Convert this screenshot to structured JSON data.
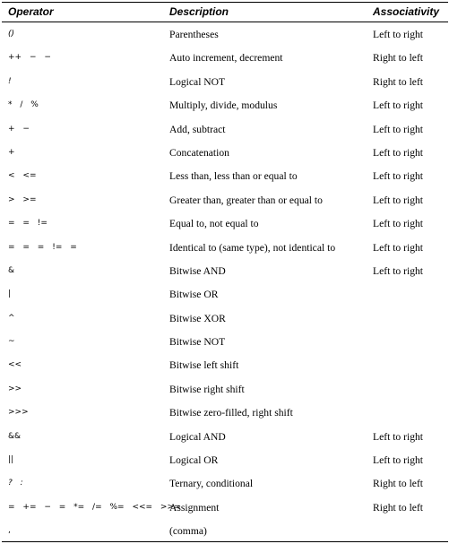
{
  "headers": {
    "operator": "Operator",
    "description": "Description",
    "associativity": "Associativity"
  },
  "rows": [
    {
      "op": "()",
      "desc": "Parentheses",
      "assoc": "Left to right"
    },
    {
      "op": "++    − −",
      "desc": "Auto increment, decrement",
      "assoc": "Right to left"
    },
    {
      "op": "!",
      "desc": "Logical NOT",
      "assoc": "Right to left"
    },
    {
      "op": "*    /    %",
      "desc": "Multiply, divide, modulus",
      "assoc": "Left to right"
    },
    {
      "op": "+    −",
      "desc": "Add, subtract",
      "assoc": "Left to right"
    },
    {
      "op": "+",
      "desc": "Concatenation",
      "assoc": "Left to right"
    },
    {
      "op": "<    <=",
      "desc": "Less than, less than or equal to",
      "assoc": "Left to right"
    },
    {
      "op": ">    >=",
      "desc": "Greater than, greater than or equal to",
      "assoc": "Left to right"
    },
    {
      "op": "= =        !=",
      "desc": "Equal to, not equal to",
      "assoc": "Left to right"
    },
    {
      "op": "= = =    != =",
      "desc": "Identical to (same type), not identical to",
      "assoc": "Left to right"
    },
    {
      "op": "&",
      "desc": "Bitwise AND",
      "assoc": "Left to right"
    },
    {
      "op": "|",
      "desc": "Bitwise OR",
      "assoc": ""
    },
    {
      "op": "^",
      "desc": "Bitwise XOR",
      "assoc": ""
    },
    {
      "op": "~",
      "desc": "Bitwise NOT",
      "assoc": ""
    },
    {
      "op": "<<",
      "desc": "Bitwise left shift",
      "assoc": ""
    },
    {
      "op": ">>",
      "desc": "Bitwise right shift",
      "assoc": ""
    },
    {
      "op": ">>>",
      "desc": "Bitwise zero-filled, right shift",
      "assoc": ""
    },
    {
      "op": "&&",
      "desc": "Logical AND",
      "assoc": "Left to right"
    },
    {
      "op": "||",
      "desc": "Logical OR",
      "assoc": "Left to right"
    },
    {
      "op": "? :",
      "desc": "Ternary, conditional",
      "assoc": "Right to left"
    },
    {
      "op": "=  +=  − =  *=  /=  %= <<=  >>=",
      "desc": "Assignment",
      "assoc": "Right to left"
    },
    {
      "op": ",",
      "desc": "(comma)",
      "assoc": ""
    }
  ]
}
